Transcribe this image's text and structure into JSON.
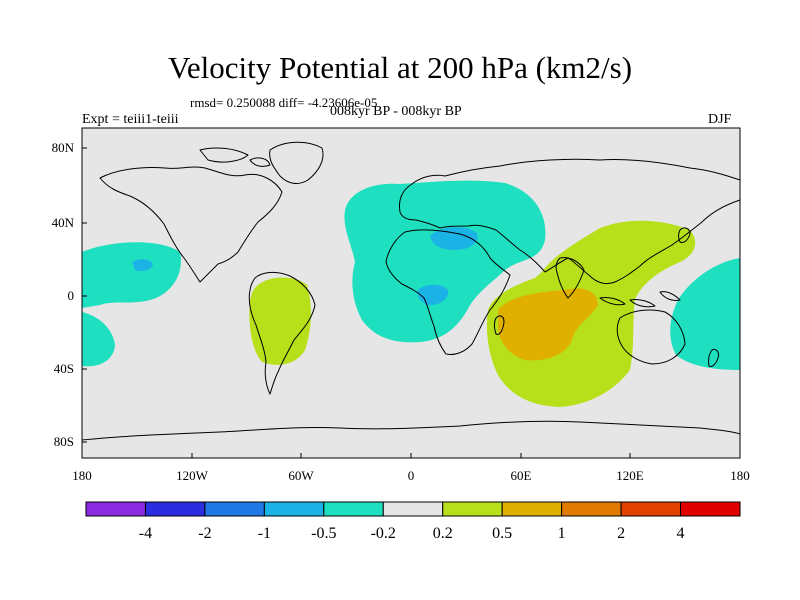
{
  "header": {
    "title": "Velocity Potential at 200 hPa (km2/s)",
    "stats": "rmsd= 0.250088 diff= -4.23606e-05",
    "period": "008kyr BP - 008kyr BP",
    "experiment": "Expt = teiii1-teiii",
    "season": "DJF"
  },
  "map": {
    "projection": "equirectangular",
    "lon_range": [
      -180,
      180
    ],
    "lat_range": [
      -90,
      90
    ],
    "y_ticks": [
      "80N",
      "40N",
      "0",
      "40S",
      "80S"
    ],
    "x_ticks": [
      "180",
      "120W",
      "60W",
      "0",
      "60E",
      "120E",
      "180"
    ],
    "ocean_color": "#e6e6e6",
    "coastline_color": "#000000"
  },
  "colorbar": {
    "labels": [
      "-4",
      "-2",
      "-1",
      "-0.5",
      "-0.2",
      "0.2",
      "0.5",
      "1",
      "2",
      "4"
    ],
    "colors": [
      "#8a2be2",
      "#2d2de0",
      "#1f78e6",
      "#1bb3e6",
      "#1ee0c0",
      "#e6e6e6",
      "#b8e01a",
      "#e0b000",
      "#e07a00",
      "#e04000",
      "#e00000"
    ]
  }
}
